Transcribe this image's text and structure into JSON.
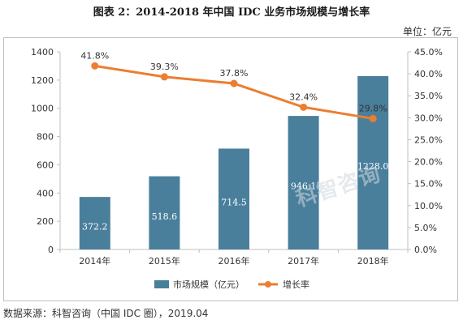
{
  "title": "图表 2：2014-2018 年中国 IDC 业务市场规模与增长率",
  "unit_label": "单位：亿元",
  "source": "数据来源：科智咨询（中国 IDC 圈），2019.04",
  "watermark": "科智咨询",
  "colors": {
    "bar": "#4a7f9c",
    "line": "#ec7d31",
    "axis": "#bfbfbf",
    "bar_label": "#ffffff"
  },
  "chart_data": {
    "type": "bar",
    "categories": [
      "2014年",
      "2015年",
      "2016年",
      "2017年",
      "2018年"
    ],
    "series": [
      {
        "name": "市场规模（亿元）",
        "type": "bar",
        "axis": "left",
        "values": [
          372.2,
          518.6,
          714.5,
          946.1,
          1228.0
        ],
        "labels": [
          "372.2",
          "518.6",
          "714.5",
          "946.1",
          "1228.0"
        ]
      },
      {
        "name": "增长率",
        "type": "line",
        "axis": "right",
        "values": [
          41.8,
          39.3,
          37.8,
          32.4,
          29.8
        ],
        "labels": [
          "41.8%",
          "39.3%",
          "37.8%",
          "32.4%",
          "29.8%"
        ]
      }
    ],
    "ylim_left": [
      0,
      1400
    ],
    "yticks_left": [
      "0",
      "200",
      "400",
      "600",
      "800",
      "1000",
      "1200",
      "1400"
    ],
    "ylim_right": [
      0,
      45
    ],
    "yticks_right": [
      "0.0%",
      "5.0%",
      "10.0%",
      "15.0%",
      "20.0%",
      "25.0%",
      "30.0%",
      "35.0%",
      "40.0%",
      "45.0%"
    ],
    "grid": false,
    "legend_position": "bottom"
  }
}
